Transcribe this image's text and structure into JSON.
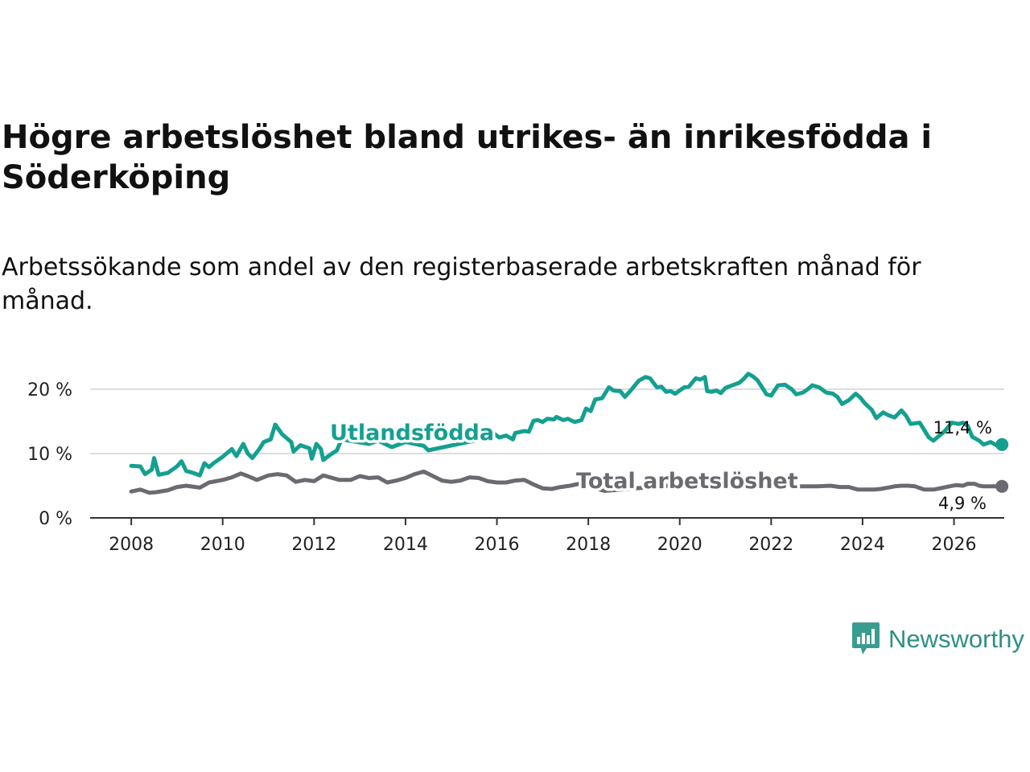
{
  "title": "Högre arbetslöshet bland utrikes- än inrikesfödda i Söderköping",
  "subtitle": "Arbetssökande som andel av den registerbaserade arbetskraften månad för månad.",
  "brand": {
    "name": "Newsworthy",
    "icon": "newsworthy-logo-icon",
    "color": "#2e8f85"
  },
  "colors": {
    "foreign": "#14a090",
    "total": "#6b6a72",
    "grid": "#dddddd",
    "axis": "#333333"
  },
  "chart_data": {
    "type": "line",
    "title": "Högre arbetslöshet bland utrikes- än inrikesfödda i Söderköping",
    "xlabel": "",
    "ylabel": "",
    "xlim": [
      2007.1,
      2027.1
    ],
    "ylim": [
      0,
      20
    ],
    "x_ticks": [
      2008,
      2010,
      2012,
      2014,
      2016,
      2018,
      2020,
      2022,
      2024,
      2026
    ],
    "x_tick_labels": [
      "2008",
      "2010",
      "2012",
      "2014",
      "2016",
      "2018",
      "2020",
      "2022",
      "2024",
      "2026"
    ],
    "y_ticks": [
      0,
      10,
      20
    ],
    "y_tick_labels": [
      "0 %",
      "10 %",
      "20 %"
    ],
    "grid": "horizontal",
    "series": [
      {
        "name": "Utlandsfödda",
        "label": "Utlandsfödda",
        "end_label": "11,4 %",
        "end_value": 11.4,
        "color": "#14a090",
        "points": [
          [
            2008.0,
            8.1
          ],
          [
            2008.2,
            8.0
          ],
          [
            2008.3,
            6.8
          ],
          [
            2008.45,
            7.5
          ],
          [
            2008.5,
            9.3
          ],
          [
            2008.6,
            6.7
          ],
          [
            2008.8,
            7.0
          ],
          [
            2009.0,
            8.0
          ],
          [
            2009.1,
            8.8
          ],
          [
            2009.2,
            7.3
          ],
          [
            2009.35,
            7.0
          ],
          [
            2009.5,
            6.6
          ],
          [
            2009.6,
            8.5
          ],
          [
            2009.7,
            7.9
          ],
          [
            2009.8,
            8.5
          ],
          [
            2010.0,
            9.5
          ],
          [
            2010.2,
            10.7
          ],
          [
            2010.3,
            9.6
          ],
          [
            2010.45,
            11.5
          ],
          [
            2010.55,
            10.0
          ],
          [
            2010.65,
            9.3
          ],
          [
            2010.8,
            10.7
          ],
          [
            2010.9,
            11.8
          ],
          [
            2011.05,
            12.2
          ],
          [
            2011.15,
            14.5
          ],
          [
            2011.3,
            13.0
          ],
          [
            2011.5,
            11.8
          ],
          [
            2011.55,
            10.3
          ],
          [
            2011.7,
            11.3
          ],
          [
            2011.9,
            10.8
          ],
          [
            2011.95,
            9.2
          ],
          [
            2012.05,
            11.5
          ],
          [
            2012.15,
            10.7
          ],
          [
            2012.2,
            9.0
          ],
          [
            2012.35,
            9.8
          ],
          [
            2012.5,
            10.5
          ],
          [
            2012.6,
            12.2
          ],
          [
            2013.2,
            11.5
          ],
          [
            2013.4,
            12.0
          ],
          [
            2013.7,
            11.0
          ],
          [
            2014.0,
            11.8
          ],
          [
            2014.4,
            11.2
          ],
          [
            2014.5,
            10.5
          ],
          [
            2015.3,
            11.7
          ],
          [
            2015.8,
            12.4
          ],
          [
            2015.9,
            13.3
          ],
          [
            2016.05,
            12.5
          ],
          [
            2016.2,
            12.8
          ],
          [
            2016.35,
            12.2
          ],
          [
            2016.4,
            13.2
          ],
          [
            2016.6,
            13.5
          ],
          [
            2016.7,
            13.4
          ],
          [
            2016.8,
            15.1
          ],
          [
            2016.9,
            15.2
          ],
          [
            2017.0,
            14.9
          ],
          [
            2017.1,
            15.4
          ],
          [
            2017.25,
            15.3
          ],
          [
            2017.3,
            15.7
          ],
          [
            2017.45,
            15.2
          ],
          [
            2017.55,
            15.4
          ],
          [
            2017.7,
            14.9
          ],
          [
            2017.85,
            15.2
          ],
          [
            2017.95,
            17.0
          ],
          [
            2018.05,
            16.6
          ],
          [
            2018.15,
            18.4
          ],
          [
            2018.3,
            18.6
          ],
          [
            2018.45,
            20.3
          ],
          [
            2018.55,
            19.8
          ],
          [
            2018.7,
            19.7
          ],
          [
            2018.8,
            18.8
          ],
          [
            2018.95,
            20.0
          ],
          [
            2019.1,
            21.3
          ],
          [
            2019.25,
            21.9
          ],
          [
            2019.35,
            21.7
          ],
          [
            2019.5,
            20.3
          ],
          [
            2019.6,
            20.4
          ],
          [
            2019.7,
            19.6
          ],
          [
            2019.8,
            19.7
          ],
          [
            2019.9,
            19.3
          ],
          [
            2020.1,
            20.3
          ],
          [
            2020.2,
            20.4
          ],
          [
            2020.35,
            21.7
          ],
          [
            2020.45,
            21.5
          ],
          [
            2020.55,
            21.9
          ],
          [
            2020.6,
            19.7
          ],
          [
            2020.7,
            19.6
          ],
          [
            2020.8,
            19.8
          ],
          [
            2020.9,
            19.4
          ],
          [
            2021.0,
            20.2
          ],
          [
            2021.15,
            20.6
          ],
          [
            2021.3,
            21.0
          ],
          [
            2021.4,
            21.6
          ],
          [
            2021.5,
            22.4
          ],
          [
            2021.6,
            22.0
          ],
          [
            2021.7,
            21.4
          ],
          [
            2021.8,
            20.3
          ],
          [
            2021.9,
            19.2
          ],
          [
            2022.0,
            19.0
          ],
          [
            2022.15,
            20.6
          ],
          [
            2022.3,
            20.7
          ],
          [
            2022.45,
            20.0
          ],
          [
            2022.55,
            19.2
          ],
          [
            2022.7,
            19.5
          ],
          [
            2022.8,
            20.0
          ],
          [
            2022.9,
            20.6
          ],
          [
            2023.05,
            20.3
          ],
          [
            2023.2,
            19.5
          ],
          [
            2023.35,
            19.3
          ],
          [
            2023.45,
            18.8
          ],
          [
            2023.55,
            17.7
          ],
          [
            2023.7,
            18.3
          ],
          [
            2023.85,
            19.3
          ],
          [
            2023.95,
            18.7
          ],
          [
            2024.05,
            17.8
          ],
          [
            2024.2,
            16.8
          ],
          [
            2024.3,
            15.5
          ],
          [
            2024.45,
            16.4
          ],
          [
            2024.55,
            16.0
          ],
          [
            2024.7,
            15.6
          ],
          [
            2024.85,
            16.7
          ],
          [
            2024.95,
            15.9
          ],
          [
            2025.05,
            14.6
          ],
          [
            2025.25,
            14.8
          ],
          [
            2025.45,
            12.5
          ],
          [
            2025.55,
            12.0
          ],
          [
            2025.65,
            12.6
          ],
          [
            2025.8,
            13.5
          ],
          [
            2025.95,
            14.8
          ],
          [
            2026.1,
            14.6
          ],
          [
            2026.2,
            14.8
          ],
          [
            2026.3,
            14.3
          ],
          [
            2026.4,
            12.6
          ],
          [
            2026.55,
            12.0
          ],
          [
            2026.65,
            11.4
          ],
          [
            2026.8,
            11.8
          ],
          [
            2026.95,
            11.2
          ],
          [
            2027.05,
            11.4
          ]
        ]
      },
      {
        "name": "Total arbetslöshet",
        "label": "Total arbetslöshet",
        "end_label": "4,9 %",
        "end_value": 4.9,
        "color": "#6b6a72",
        "points": [
          [
            2008.0,
            4.1
          ],
          [
            2008.2,
            4.4
          ],
          [
            2008.4,
            3.9
          ],
          [
            2008.55,
            4.0
          ],
          [
            2008.8,
            4.3
          ],
          [
            2009.0,
            4.8
          ],
          [
            2009.2,
            5.0
          ],
          [
            2009.5,
            4.7
          ],
          [
            2009.7,
            5.5
          ],
          [
            2010.0,
            5.9
          ],
          [
            2010.2,
            6.3
          ],
          [
            2010.4,
            6.9
          ],
          [
            2010.55,
            6.5
          ],
          [
            2010.75,
            5.9
          ],
          [
            2011.0,
            6.6
          ],
          [
            2011.2,
            6.8
          ],
          [
            2011.4,
            6.6
          ],
          [
            2011.6,
            5.6
          ],
          [
            2011.8,
            5.9
          ],
          [
            2012.0,
            5.7
          ],
          [
            2012.2,
            6.6
          ],
          [
            2012.4,
            6.2
          ],
          [
            2012.55,
            5.9
          ],
          [
            2012.8,
            5.9
          ],
          [
            2013.0,
            6.5
          ],
          [
            2013.2,
            6.2
          ],
          [
            2013.4,
            6.3
          ],
          [
            2013.6,
            5.5
          ],
          [
            2013.8,
            5.8
          ],
          [
            2014.0,
            6.2
          ],
          [
            2014.2,
            6.8
          ],
          [
            2014.4,
            7.2
          ],
          [
            2014.6,
            6.5
          ],
          [
            2014.8,
            5.8
          ],
          [
            2015.0,
            5.6
          ],
          [
            2015.2,
            5.8
          ],
          [
            2015.4,
            6.3
          ],
          [
            2015.6,
            6.2
          ],
          [
            2015.8,
            5.7
          ],
          [
            2016.0,
            5.5
          ],
          [
            2016.2,
            5.5
          ],
          [
            2016.4,
            5.8
          ],
          [
            2016.6,
            5.9
          ],
          [
            2016.8,
            5.2
          ],
          [
            2017.0,
            4.6
          ],
          [
            2017.2,
            4.5
          ],
          [
            2017.4,
            4.8
          ],
          [
            2017.6,
            5.0
          ],
          [
            2017.8,
            5.3
          ],
          [
            2018.0,
            4.9
          ],
          [
            2018.2,
            4.5
          ],
          [
            2018.35,
            4.2
          ],
          [
            2018.55,
            4.3
          ],
          [
            2019.0,
            4.6
          ],
          [
            2019.5,
            4.8
          ],
          [
            2020.0,
            5.2
          ],
          [
            2020.5,
            5.0
          ],
          [
            2021.0,
            4.9
          ],
          [
            2021.5,
            5.1
          ],
          [
            2022.0,
            5.0
          ],
          [
            2022.5,
            4.9
          ],
          [
            2023.0,
            4.9
          ],
          [
            2023.3,
            5.0
          ],
          [
            2023.5,
            4.8
          ],
          [
            2023.7,
            4.8
          ],
          [
            2023.9,
            4.4
          ],
          [
            2024.05,
            4.4
          ],
          [
            2024.25,
            4.4
          ],
          [
            2024.4,
            4.5
          ],
          [
            2024.55,
            4.7
          ],
          [
            2024.7,
            4.9
          ],
          [
            2024.85,
            5.0
          ],
          [
            2025.0,
            5.0
          ],
          [
            2025.15,
            4.9
          ],
          [
            2025.35,
            4.4
          ],
          [
            2025.55,
            4.4
          ],
          [
            2025.7,
            4.6
          ],
          [
            2025.9,
            4.9
          ],
          [
            2026.05,
            5.1
          ],
          [
            2026.2,
            5.0
          ],
          [
            2026.3,
            5.3
          ],
          [
            2026.45,
            5.3
          ],
          [
            2026.55,
            5.0
          ],
          [
            2026.65,
            4.9
          ],
          [
            2026.8,
            4.9
          ],
          [
            2026.95,
            4.9
          ],
          [
            2027.05,
            4.9
          ]
        ]
      }
    ]
  }
}
